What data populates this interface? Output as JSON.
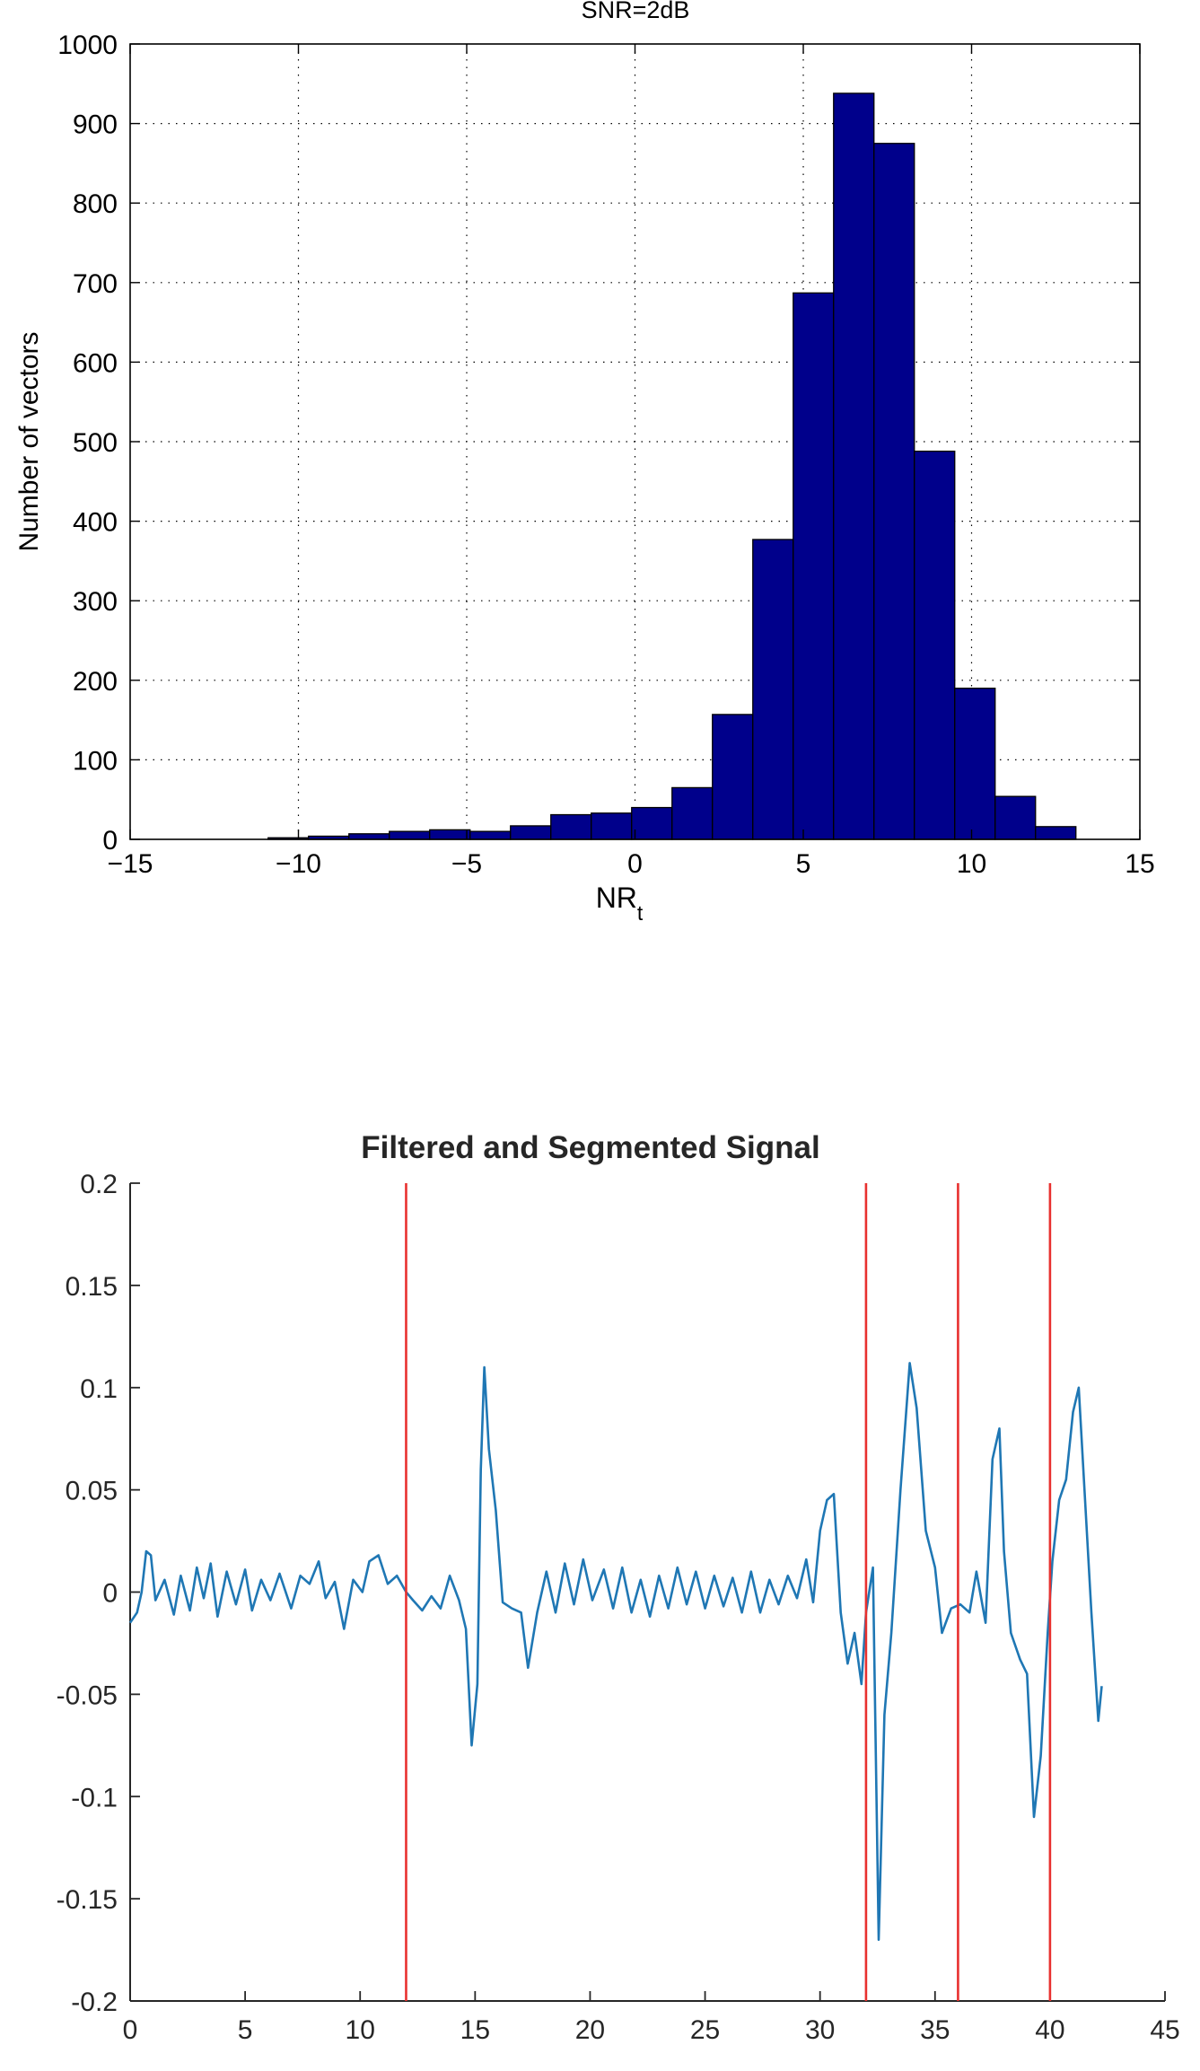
{
  "chart_data": [
    {
      "type": "bar",
      "title": "SNR=2dB",
      "xlabel_main": "NR",
      "xlabel_sub": "t",
      "ylabel": "Number of vectors",
      "xlim": [
        -15,
        15
      ],
      "ylim": [
        0,
        1000
      ],
      "grid": true,
      "xticks": [
        -15,
        -10,
        -5,
        0,
        5,
        10,
        15
      ],
      "xtick_labels": [
        "−15",
        "−10",
        "−5",
        "0",
        "5",
        "10",
        "15"
      ],
      "yticks": [
        0,
        100,
        200,
        300,
        400,
        500,
        600,
        700,
        800,
        900,
        1000
      ],
      "ytick_labels": [
        "0",
        "100",
        "200",
        "300",
        "400",
        "500",
        "600",
        "700",
        "800",
        "900",
        "1000"
      ],
      "bar_color": "#00008B",
      "bins": [
        {
          "x0": -14.5,
          "x1": -13.3,
          "value": 0
        },
        {
          "x0": -13.3,
          "x1": -12.1,
          "value": 0
        },
        {
          "x0": -12.1,
          "x1": -10.9,
          "value": 0
        },
        {
          "x0": -10.9,
          "x1": -9.7,
          "value": 2
        },
        {
          "x0": -9.7,
          "x1": -8.5,
          "value": 4
        },
        {
          "x0": -8.5,
          "x1": -7.3,
          "value": 7
        },
        {
          "x0": -7.3,
          "x1": -6.1,
          "value": 10
        },
        {
          "x0": -6.1,
          "x1": -4.9,
          "value": 12
        },
        {
          "x0": -4.9,
          "x1": -3.7,
          "value": 10
        },
        {
          "x0": -3.7,
          "x1": -2.5,
          "value": 17
        },
        {
          "x0": -2.5,
          "x1": -1.3,
          "value": 31
        },
        {
          "x0": -1.3,
          "x1": -0.1,
          "value": 33
        },
        {
          "x0": -0.1,
          "x1": 1.1,
          "value": 40
        },
        {
          "x0": 1.1,
          "x1": 2.3,
          "value": 65
        },
        {
          "x0": 2.3,
          "x1": 3.5,
          "value": 157
        },
        {
          "x0": 3.5,
          "x1": 4.7,
          "value": 377
        },
        {
          "x0": 4.7,
          "x1": 5.9,
          "value": 687
        },
        {
          "x0": 5.9,
          "x1": 7.1,
          "value": 938
        },
        {
          "x0": 7.1,
          "x1": 8.3,
          "value": 875
        },
        {
          "x0": 8.3,
          "x1": 9.5,
          "value": 488
        },
        {
          "x0": 9.5,
          "x1": 10.7,
          "value": 190
        },
        {
          "x0": 10.7,
          "x1": 11.9,
          "value": 54
        },
        {
          "x0": 11.9,
          "x1": 13.1,
          "value": 16
        }
      ]
    },
    {
      "type": "line",
      "title": "Filtered and Segmented Signal",
      "xlabel": "",
      "ylabel": "",
      "xlim": [
        0,
        45
      ],
      "ylim": [
        -0.2,
        0.2
      ],
      "grid": false,
      "xticks": [
        0,
        5,
        10,
        15,
        20,
        25,
        30,
        35,
        40,
        45
      ],
      "xtick_labels": [
        "0",
        "5",
        "10",
        "15",
        "20",
        "25",
        "30",
        "35",
        "40",
        "45"
      ],
      "yticks": [
        -0.2,
        -0.15,
        -0.1,
        -0.05,
        0,
        0.05,
        0.1,
        0.15,
        0.2
      ],
      "ytick_labels": [
        "-0.2",
        "-0.15",
        "-0.1",
        "-0.05",
        "0",
        "0.05",
        "0.1",
        "0.15",
        "0.2"
      ],
      "line_color": "#1f77b4",
      "marker_color": "#e8312f",
      "segment_markers": [
        12,
        32,
        36,
        40
      ],
      "keypoints": [
        [
          0,
          -0.015
        ],
        [
          0.3,
          -0.01
        ],
        [
          0.5,
          0.0
        ],
        [
          0.7,
          0.02
        ],
        [
          0.9,
          0.018
        ],
        [
          1.1,
          -0.004
        ],
        [
          1.5,
          0.006
        ],
        [
          1.9,
          -0.011
        ],
        [
          2.2,
          0.008
        ],
        [
          2.6,
          -0.009
        ],
        [
          2.9,
          0.012
        ],
        [
          3.2,
          -0.003
        ],
        [
          3.5,
          0.014
        ],
        [
          3.8,
          -0.012
        ],
        [
          4.2,
          0.01
        ],
        [
          4.6,
          -0.006
        ],
        [
          5.0,
          0.011
        ],
        [
          5.3,
          -0.009
        ],
        [
          5.7,
          0.006
        ],
        [
          6.1,
          -0.004
        ],
        [
          6.5,
          0.009
        ],
        [
          7.0,
          -0.008
        ],
        [
          7.4,
          0.008
        ],
        [
          7.8,
          0.004
        ],
        [
          8.2,
          0.015
        ],
        [
          8.5,
          -0.003
        ],
        [
          8.9,
          0.005
        ],
        [
          9.3,
          -0.018
        ],
        [
          9.7,
          0.006
        ],
        [
          10.1,
          0.0
        ],
        [
          10.4,
          0.015
        ],
        [
          10.8,
          0.018
        ],
        [
          11.2,
          0.004
        ],
        [
          11.6,
          0.008
        ],
        [
          12.0,
          0.0
        ],
        [
          12.3,
          -0.004
        ],
        [
          12.7,
          -0.009
        ],
        [
          13.1,
          -0.002
        ],
        [
          13.5,
          -0.008
        ],
        [
          13.9,
          0.008
        ],
        [
          14.3,
          -0.004
        ],
        [
          14.6,
          -0.018
        ],
        [
          14.85,
          -0.075
        ],
        [
          15.1,
          -0.045
        ],
        [
          15.25,
          0.06
        ],
        [
          15.4,
          0.11
        ],
        [
          15.6,
          0.07
        ],
        [
          15.9,
          0.04
        ],
        [
          16.2,
          -0.005
        ],
        [
          16.6,
          -0.008
        ],
        [
          17.0,
          -0.01
        ],
        [
          17.3,
          -0.037
        ],
        [
          17.7,
          -0.01
        ],
        [
          18.1,
          0.01
        ],
        [
          18.5,
          -0.01
        ],
        [
          18.9,
          0.014
        ],
        [
          19.3,
          -0.006
        ],
        [
          19.7,
          0.016
        ],
        [
          20.1,
          -0.004
        ],
        [
          20.6,
          0.011
        ],
        [
          21.0,
          -0.008
        ],
        [
          21.4,
          0.012
        ],
        [
          21.8,
          -0.01
        ],
        [
          22.2,
          0.006
        ],
        [
          22.6,
          -0.012
        ],
        [
          23.0,
          0.008
        ],
        [
          23.4,
          -0.008
        ],
        [
          23.8,
          0.012
        ],
        [
          24.2,
          -0.006
        ],
        [
          24.6,
          0.01
        ],
        [
          25.0,
          -0.008
        ],
        [
          25.4,
          0.008
        ],
        [
          25.8,
          -0.007
        ],
        [
          26.2,
          0.007
        ],
        [
          26.6,
          -0.01
        ],
        [
          27.0,
          0.01
        ],
        [
          27.4,
          -0.01
        ],
        [
          27.8,
          0.006
        ],
        [
          28.2,
          -0.006
        ],
        [
          28.6,
          0.008
        ],
        [
          29.0,
          -0.003
        ],
        [
          29.4,
          0.016
        ],
        [
          29.7,
          -0.005
        ],
        [
          30.0,
          0.03
        ],
        [
          30.3,
          0.045
        ],
        [
          30.6,
          0.048
        ],
        [
          30.9,
          -0.01
        ],
        [
          31.2,
          -0.035
        ],
        [
          31.5,
          -0.02
        ],
        [
          31.8,
          -0.045
        ],
        [
          32.0,
          -0.01
        ],
        [
          32.3,
          0.012
        ],
        [
          32.55,
          -0.17
        ],
        [
          32.8,
          -0.06
        ],
        [
          33.1,
          -0.02
        ],
        [
          33.5,
          0.05
        ],
        [
          33.9,
          0.112
        ],
        [
          34.2,
          0.09
        ],
        [
          34.6,
          0.03
        ],
        [
          35.0,
          0.012
        ],
        [
          35.3,
          -0.02
        ],
        [
          35.7,
          -0.008
        ],
        [
          36.1,
          -0.006
        ],
        [
          36.5,
          -0.01
        ],
        [
          36.8,
          0.01
        ],
        [
          37.2,
          -0.015
        ],
        [
          37.5,
          0.065
        ],
        [
          37.8,
          0.08
        ],
        [
          38.0,
          0.02
        ],
        [
          38.3,
          -0.02
        ],
        [
          38.7,
          -0.033
        ],
        [
          39.0,
          -0.04
        ],
        [
          39.3,
          -0.11
        ],
        [
          39.6,
          -0.08
        ],
        [
          39.9,
          -0.02
        ],
        [
          40.1,
          0.015
        ],
        [
          40.4,
          0.045
        ],
        [
          40.7,
          0.055
        ],
        [
          41.0,
          0.088
        ],
        [
          41.25,
          0.1
        ],
        [
          41.5,
          0.05
        ],
        [
          41.8,
          -0.01
        ],
        [
          42.1,
          -0.063
        ],
        [
          42.25,
          -0.046
        ]
      ]
    }
  ]
}
